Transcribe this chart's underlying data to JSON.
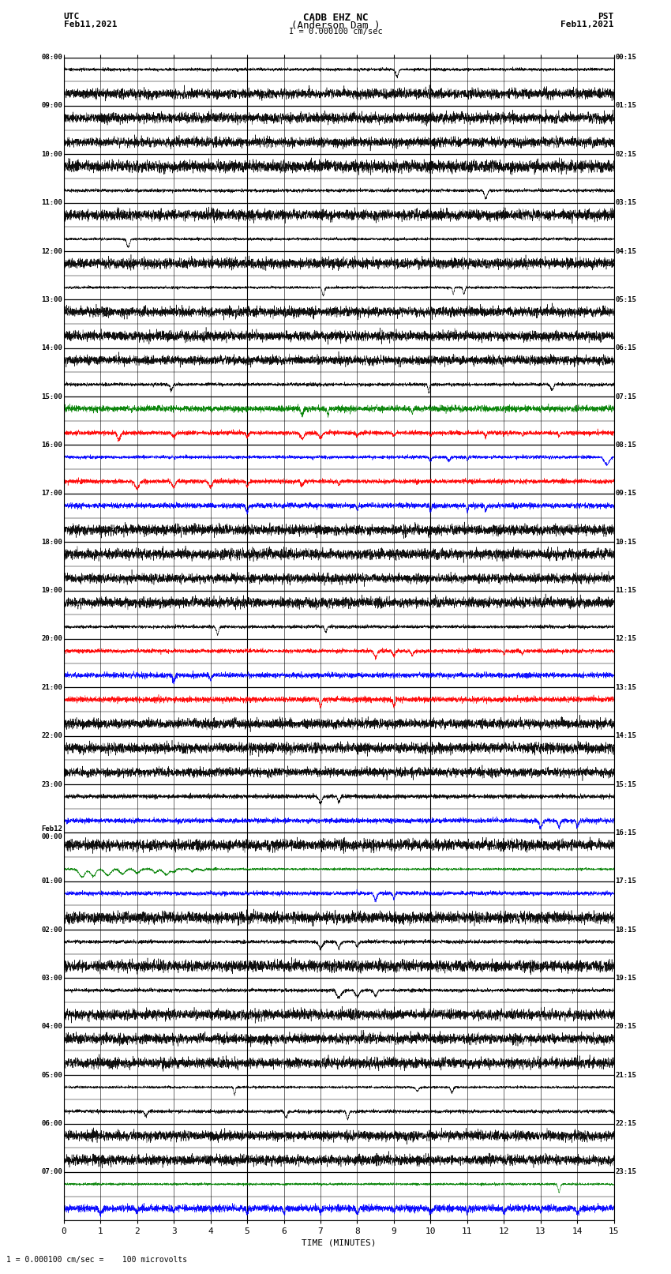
{
  "title_line1": "CADB EHZ NC",
  "title_line2": "(Anderson Dam )",
  "title_line3": "I = 0.000100 cm/sec",
  "left_header_line1": "UTC",
  "left_header_line2": "Feb11,2021",
  "right_header_line1": "PST",
  "right_header_line2": "Feb11,2021",
  "xlabel": "TIME (MINUTES)",
  "footer": "1 = 0.000100 cm/sec =    100 microvolts",
  "x_min": 0,
  "x_max": 15,
  "x_ticks": [
    0,
    1,
    2,
    3,
    4,
    5,
    6,
    7,
    8,
    9,
    10,
    11,
    12,
    13,
    14,
    15
  ],
  "left_labels": [
    "08:00",
    "",
    "09:00",
    "",
    "10:00",
    "",
    "11:00",
    "",
    "12:00",
    "",
    "13:00",
    "",
    "14:00",
    "",
    "15:00",
    "",
    "16:00",
    "",
    "17:00",
    "",
    "18:00",
    "",
    "19:00",
    "",
    "20:00",
    "",
    "21:00",
    "",
    "22:00",
    "",
    "23:00",
    "",
    "Feb12\n00:00",
    "",
    "01:00",
    "",
    "02:00",
    "",
    "03:00",
    "",
    "04:00",
    "",
    "05:00",
    "",
    "06:00",
    "",
    "07:00",
    ""
  ],
  "right_labels": [
    "00:15",
    "",
    "01:15",
    "",
    "02:15",
    "",
    "03:15",
    "",
    "04:15",
    "",
    "05:15",
    "",
    "06:15",
    "",
    "07:15",
    "",
    "08:15",
    "",
    "09:15",
    "",
    "10:15",
    "",
    "11:15",
    "",
    "12:15",
    "",
    "13:15",
    "",
    "14:15",
    "",
    "15:15",
    "",
    "16:15",
    "",
    "17:15",
    "",
    "18:15",
    "",
    "19:15",
    "",
    "20:15",
    "",
    "21:15",
    "",
    "22:15",
    "",
    "23:15",
    ""
  ],
  "num_rows": 48,
  "background_color": "#ffffff",
  "trace_color_normal": "#000000",
  "trace_color_red": "#ff0000",
  "trace_color_blue": "#0000ff",
  "trace_color_green": "#008000"
}
